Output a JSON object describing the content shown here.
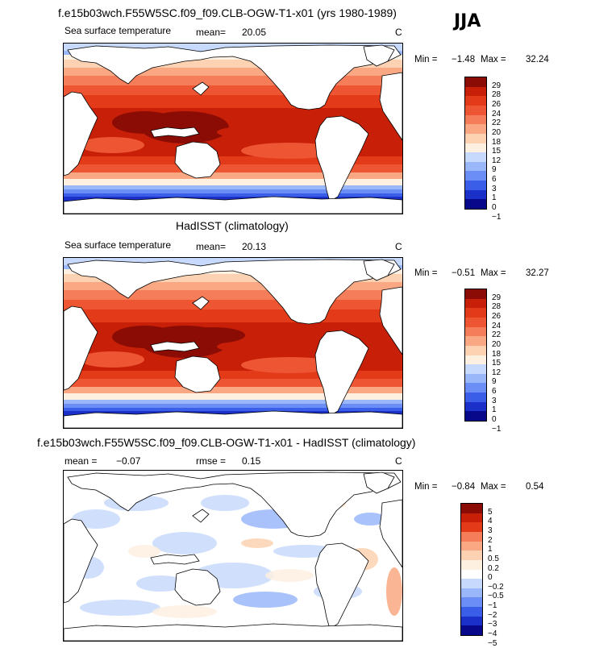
{
  "season": "JJA",
  "colors": {
    "sst": [
      "#08088a",
      "#1a30c8",
      "#3b5ee8",
      "#6a8ef5",
      "#9ab7fa",
      "#c7d9fc",
      "#fdf0e0",
      "#fcd2b2",
      "#f9a883",
      "#f57d59",
      "#ee5533",
      "#e33a1a",
      "#c82008",
      "#8a0c04"
    ],
    "diff": [
      "#08088a",
      "#1a30c8",
      "#3b5ee8",
      "#6a8ef5",
      "#9ab7fa",
      "#c7d9fc",
      "#ffffff",
      "#fdf0e0",
      "#fcd2b2",
      "#f9a883",
      "#f57d59",
      "#e33a1a",
      "#c82008",
      "#8a0c04"
    ]
  },
  "panels": [
    {
      "title": "f.e15b03wch.F55W5SC.f09_f09.CLB-OGW-T1-x01 (yrs 1980-1989)",
      "variable": "Sea surface temperature",
      "mean_label": "mean=",
      "mean_value": "20.05",
      "units": "C",
      "min_label": "Min =",
      "min_value": "−1.48",
      "max_label": "Max =",
      "max_value": "32.24"
    },
    {
      "title": "HadISST (climatology)",
      "variable": "Sea surface temperature",
      "mean_label": "mean=",
      "mean_value": "20.13",
      "units": "C",
      "min_label": "Min =",
      "min_value": "−0.51",
      "max_label": "Max =",
      "max_value": "32.27"
    },
    {
      "title": "f.e15b03wch.F55W5SC.f09_f09.CLB-OGW-T1-x01 - HadISST (climatology)",
      "mean_label": "mean =",
      "mean_value": "−0.07",
      "rmse_label": "rmse =",
      "rmse_value": "0.15",
      "units": "C",
      "min_label": "Min =",
      "min_value": "−0.84",
      "max_label": "Max =",
      "max_value": "0.54"
    }
  ],
  "chart_data": [
    {
      "type": "heatmap",
      "title": "f.e15b03wch.F55W5SC.f09_f09.CLB-OGW-T1-x01 (yrs 1980-1989)",
      "variable": "Sea surface temperature",
      "units": "C",
      "mean": 20.05,
      "min": -1.48,
      "max": 32.24,
      "colorbar_levels": [
        "29",
        "28",
        "26",
        "24",
        "22",
        "20",
        "18",
        "15",
        "12",
        "9",
        "6",
        "3",
        "1",
        "0",
        "−1"
      ]
    },
    {
      "type": "heatmap",
      "title": "HadISST (climatology)",
      "variable": "Sea surface temperature",
      "units": "C",
      "mean": 20.13,
      "min": -0.51,
      "max": 32.27,
      "colorbar_levels": [
        "29",
        "28",
        "26",
        "24",
        "22",
        "20",
        "18",
        "15",
        "12",
        "9",
        "6",
        "3",
        "1",
        "0",
        "−1"
      ]
    },
    {
      "type": "heatmap",
      "title": "f.e15b03wch.F55W5SC.f09_f09.CLB-OGW-T1-x01 - HadISST (climatology)",
      "units": "C",
      "mean": -0.07,
      "rmse": 0.15,
      "min": -0.84,
      "max": 0.54,
      "colorbar_levels": [
        "5",
        "4",
        "3",
        "2",
        "1",
        "0.5",
        "0.2",
        "0",
        "−0.2",
        "−0.5",
        "−1",
        "−2",
        "−3",
        "−4",
        "−5"
      ]
    }
  ]
}
